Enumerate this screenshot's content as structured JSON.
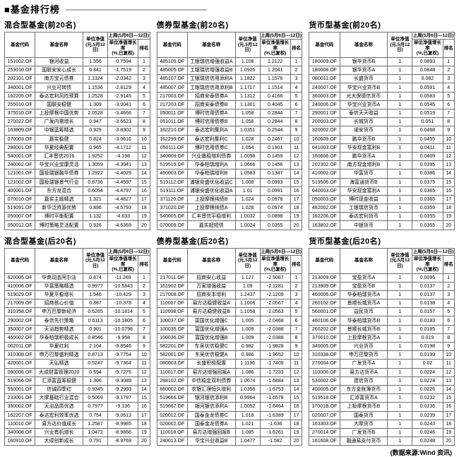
{
  "page": {
    "title": "■基金排行榜",
    "source": "(数据来源:Wind 资讯)"
  },
  "columns": {
    "code": "基金代码",
    "name": "基金名称",
    "nav": "单位净值\n(元,5月12日)",
    "week": "上周(5月6日—12日)",
    "growth": "单位净值增长率\n(%,已复权)",
    "rank": "排名"
  },
  "tables": [
    {
      "title": "混合型基金(前20名)",
      "rows": [
        [
          "151002.OF",
          "银河收益",
          "1.556",
          "-0.7594",
          "1"
        ],
        [
          "253010.OF",
          "国联安安心成长",
          "0.841",
          "-1.7519",
          "2"
        ],
        [
          "202101.OF",
          "南方宝元债券",
          "1.1324",
          "-2.0342",
          "3"
        ],
        [
          "340001.OF",
          "兴业可转债",
          "1.1536",
          "-2.8129",
          "4"
        ],
        [
          "162205.OF",
          "泰达宏利风险预算",
          "1.2528",
          "-2.9145",
          "5"
        ],
        [
          "255010.OF",
          "国联安稳健",
          "1.309",
          "-3.0041",
          "6"
        ],
        [
          "375010.OF",
          "上投摩根中国优势",
          "2.0528",
          "-3.4666",
          "7"
        ],
        [
          "270022.OF",
          "广发内需增长",
          "0.947",
          "-3.6623",
          "8"
        ],
        [
          "163809.OF",
          "中银蓝筹精选",
          "0.929",
          "-3.8302",
          "9"
        ],
        [
          "070003.OF",
          "嘉实稳健",
          "0.824",
          "-3.9616",
          "10"
        ],
        [
          "288001.OF",
          "华夏经典配置",
          "0.965",
          "-4.1712",
          "11"
        ],
        [
          "540001.OF",
          "汇丰晋信2016",
          "1.9252",
          "-4.198",
          "12"
        ],
        [
          "240002.OF",
          "华宝兴业宝康灵活",
          "1.3059",
          "-4.3941",
          "13"
        ],
        [
          "121001.OF",
          "国投瑞银融华债券",
          "1.2922",
          "-4.4029",
          "14"
        ],
        [
          "121002.OF",
          "国投瑞银景气行业",
          "0.8736",
          "-4.4597",
          "15"
        ],
        [
          "400001.OF",
          "东方龙混合",
          "0.6054",
          "-4.4797",
          "16"
        ],
        [
          "070010.OF",
          "嘉实主题精选",
          "1.321",
          "-4.4827",
          "17"
        ],
        [
          "519091.OF",
          "新华泛资源优势",
          "0.896",
          "-4.5793",
          "18"
        ],
        [
          "050007.OF",
          "博时平衡配置",
          "1.132",
          "-4.633",
          "19"
        ],
        [
          "050012.OF",
          "博时策略灵活配置",
          "0.926",
          "-4.6369",
          "20"
        ]
      ]
    },
    {
      "title": "债券型基金(前20名)",
      "rows": [
        [
          "485105.OF",
          "工银瑞信增强收益A",
          "1.108",
          "1.2122",
          "1"
        ],
        [
          "485005.OF",
          "工银瑞信增强收益B",
          "1.0926",
          "1.2041",
          "2"
        ],
        [
          "485107.OF",
          "工银瑞信信用添利A",
          "1.1822",
          "1.1576",
          "3"
        ],
        [
          "485007.OF",
          "工银瑞信信用添利B",
          "1.1717",
          "1.1514",
          "4"
        ],
        [
          "217003.OF",
          "招商安泰债券A",
          "1.1312",
          "0.4166",
          "5"
        ],
        [
          "217203.OF",
          "招商安泰债券B",
          "1.1301",
          "0.4045",
          "6"
        ],
        [
          "050011.OF",
          "博时信用债券A",
          "1.058",
          "0.2844",
          "7"
        ],
        [
          "051011.OF",
          "博时信用债券B",
          "1.058",
          "0.2844",
          "8"
        ],
        [
          "162210.OF",
          "泰达宏利集利A",
          "1.0351",
          "0.2544",
          "9"
        ],
        [
          "162299.OF",
          "泰达宏利集利C",
          "1.028",
          "0.2467",
          "10"
        ],
        [
          "050111.OF",
          "博时信用债券C",
          "1.054",
          "0.1901",
          "11"
        ],
        [
          "340009.OF",
          "兴业磐稳增利债券",
          "1.0098",
          "0.1459",
          "12"
        ],
        [
          "519519.OF",
          "华泰柏瑞增利A",
          "1.0666",
          "0.1456",
          "13"
        ],
        [
          "460003.OF",
          "华泰柏瑞增利B",
          "1.0583",
          "0.1347",
          "14"
        ],
        [
          "519112.OF",
          "浦银安盛优化收益C",
          "1.008",
          "0.0993",
          "15"
        ],
        [
          "519111.OF",
          "浦银安盛优化收益A",
          "1.01",
          "0.0991",
          "16"
        ],
        [
          "371120.OF",
          "上投摩根纯债B",
          "1.024",
          "0.0978",
          "17"
        ],
        [
          "371020.OF",
          "上投摩根纯债A",
          "1.028",
          "0.0974",
          "18"
        ],
        [
          "540005.OF",
          "汇丰晋信平稳增利",
          "1.0032",
          "0.0898",
          "19"
        ],
        [
          "070009.OF",
          "嘉实超短债",
          "1.0024",
          "0.0355",
          "20"
        ]
      ]
    },
    {
      "title": "货币型基金(前20名)",
      "rows": [
        [
          "180009.OF",
          "银华货币B",
          "1",
          "0.0893",
          "1"
        ],
        [
          "180008.OF",
          "银华货币A",
          "1",
          "0.0848",
          "2"
        ],
        [
          "080011.OF",
          "长盛货币",
          "1",
          "0.082",
          "3"
        ],
        [
          "240007.OF",
          "华宝兴业货币B",
          "1",
          "0.0591",
          "4"
        ],
        [
          "360003.OF",
          "光大保德信货币",
          "1",
          "0.0583",
          "5"
        ],
        [
          "240006.OF",
          "华宝兴业货币A",
          "1",
          "0.0545",
          "6"
        ],
        [
          "290001.OF",
          "泰信天天收益",
          "1",
          "0.0519",
          "7"
        ],
        [
          "200003.OF",
          "长城货币",
          "1",
          "0.051",
          "8"
        ],
        [
          "320002.OF",
          "诺安货币",
          "1",
          "0.0468",
          "9"
        ],
        [
          "160609.OF",
          "鹏华货币B",
          "1",
          "0.0455",
          "10"
        ],
        [
          "041003.OF",
          "华安现金富利B",
          "1",
          "0.0411",
          "11"
        ],
        [
          "160606.OF",
          "鹏华货币A",
          "1",
          "0.0409",
          "12"
        ],
        [
          "202302.OF",
          "南方现金增利B",
          "1",
          "0.0395",
          "13"
        ],
        [
          "410002.OF",
          "华富货币",
          "1",
          "0.0386",
          "14"
        ],
        [
          "519506.OF",
          "海富通货币B",
          "1",
          "0.0375",
          "15"
        ],
        [
          "040003.OF",
          "华安现金富利A",
          "1",
          "0.0365",
          "16"
        ],
        [
          "050003.OF",
          "博时现金收益",
          "1",
          "0.0365",
          "17"
        ],
        [
          "482002.OF",
          "工银瑞信货币",
          "1",
          "0.0359",
          "18"
        ],
        [
          "162206.OF",
          "泰达宏利货币",
          "1",
          "0.0355",
          "19"
        ],
        [
          "163802.OF",
          "中银货币",
          "1",
          "0.0355",
          "20"
        ]
      ]
    },
    {
      "title": "混合型基金(后20名)",
      "rows": [
        [
          "620005.OF",
          "华商动态阿尔法",
          "0.874",
          "-11.269",
          "1"
        ],
        [
          "410006.OF",
          "华富策略精选",
          "0.9977",
          "-10.5843",
          "2"
        ],
        [
          "519029.OF",
          "华夏平稳增长",
          "1.546",
          "-10.429",
          "3"
        ],
        [
          "217009.OF",
          "招商核心价值",
          "0.887",
          "-10.378",
          "4"
        ],
        [
          "310358.OF",
          "申万巴黎新经济",
          "0.6265",
          "-10.1814",
          "5"
        ],
        [
          "290002.OF",
          "泰信先行策略",
          "0.6113",
          "-10.1805",
          "6"
        ],
        [
          "350007.OF",
          "天治趋势精选",
          "0.901",
          "-10.0798",
          "7"
        ],
        [
          "460002.OF",
          "华泰柏瑞积极成长",
          "0.8546",
          "-9.958",
          "8"
        ],
        [
          "002011.OF",
          "华夏红利",
          "2.104",
          "-9.8546",
          "9"
        ],
        [
          "310308.OF",
          "申万巴黎盛利精选",
          "0.8713",
          "-9.7754",
          "10"
        ],
        [
          "420001.OF",
          "天弘精选",
          "0.5247",
          "-9.7364",
          "11"
        ],
        [
          "090006.OF",
          "大成财富管理2020",
          "0.594",
          "-9.7276",
          "12"
        ],
        [
          "519066.OF",
          "汇添富蓝筹稳健",
          "1.306",
          "-9.3089",
          "13"
        ],
        [
          "550001.OF",
          "信诚四季红",
          "0.9345",
          "-9.2993",
          "14"
        ],
        [
          "233001.OF",
          "大摩基础行业混合",
          "0.5069",
          "-9.1797",
          "15"
        ],
        [
          "350002.OF",
          "天治品质优选",
          "0.7977",
          "-9.136",
          "16"
        ],
        [
          "162207.OF",
          "泰达宏利效率优选",
          "0.754",
          "-9.0613",
          "17"
        ],
        [
          "110010.OF",
          "易方达价值成长",
          "1.2587",
          "-8.9985",
          "18"
        ],
        [
          "340008.OF",
          "兴业有机增长",
          "1.0472",
          "-8.9866",
          "19"
        ],
        [
          "160910.OF",
          "大成创新成长",
          "0.791",
          "-8.9769",
          "20"
        ]
      ]
    },
    {
      "title": "债券型基金(后20名)",
      "rows": [
        [
          "217011.OF",
          "招商安心收益",
          "1.127",
          "-2.5087",
          "1"
        ],
        [
          "161902.OF",
          "万家增强收益",
          "1.09",
          "-2.1281",
          "2"
        ],
        [
          "217008.OF",
          "招商安本增利",
          "1.2437",
          "-2.1209",
          "3"
        ],
        [
          "110007.OF",
          "易方达稳健收益A",
          "1.1006",
          "-2.0567",
          "4"
        ],
        [
          "110008.OF",
          "易方达稳健收益B",
          "1.1058",
          "-2.0563",
          "5"
        ],
        [
          "100037.OF",
          "富国优化增强C",
          "1.005",
          "-2.0468",
          "6"
        ],
        [
          "100035.OF",
          "富国优化增强A",
          "1.009",
          "-2.0388",
          "7"
        ],
        [
          "100036.OF",
          "富国优化增强B",
          "1.009",
          "-2.0388",
          "8"
        ],
        [
          "582201.OF",
          "东吴优信稳健C",
          "0.982",
          "-1.9828",
          "9"
        ],
        [
          "582001.OF",
          "东吴优信稳健A",
          "0.986",
          "-1.9652",
          "10"
        ],
        [
          "080003.OF",
          "长盛积极配置",
          "1.1196",
          "-1.7409",
          "11"
        ],
        [
          "110017.OF",
          "易方达增强回报A",
          "1.086",
          "-1.7233",
          "12"
        ],
        [
          "288102.OF",
          "中信稳定双利债券",
          "1.0674",
          "-1.6884",
          "13"
        ],
        [
          "660002.OF",
          "农银汇理恒久增利",
          "1.0358",
          "-1.6753",
          "14"
        ],
        [
          "519666.OF",
          "银河银信添利B",
          "0.9964",
          "-1.6578",
          "15"
        ],
        [
          "519667.OF",
          "银河银信添利A",
          "1.0052",
          "-1.6464",
          "16"
        ],
        [
          "020012.OF",
          "国泰金龙债券C",
          "1.018",
          "-1.6389",
          "17"
        ],
        [
          "020002.OF",
          "国泰金龙债券A",
          "1.021",
          "-1.636",
          "18"
        ],
        [
          "110018.OF",
          "易方达增强回报B",
          "1.085",
          "-1.6261",
          "19"
        ],
        [
          "240013.OF",
          "华宝兴业收益B",
          "1.0477",
          "-1.582",
          "20"
        ]
      ]
    },
    {
      "title": "货币型基金(后20名)",
      "rows": [
        [
          "213009.OF",
          "宝盈货币A",
          "1",
          "0.0095",
          "1"
        ],
        [
          "213909.OF",
          "宝盈货币B",
          "1",
          "0.0137",
          "2"
        ],
        [
          "460006.OF",
          "华泰柏瑞货币A",
          "1",
          "0.0137",
          "3"
        ],
        [
          "260102.OF",
          "景顺长城货币A",
          "1",
          "0.0138",
          "4"
        ],
        [
          "560001.OF",
          "益民货币",
          "1",
          "0.0157",
          "5"
        ],
        [
          "460106.OF",
          "华泰柏瑞货币B",
          "1",
          "0.0183",
          "6"
        ],
        [
          "260202.OF",
          "景顺长城货币B",
          "1",
          "0.0185",
          "7"
        ],
        [
          "370010.OF",
          "上投摩根货币A",
          "1",
          "0.019",
          "8"
        ],
        [
          "340005.OF",
          "兴业货币",
          "1",
          "0.0198",
          "9"
        ],
        [
          "310338.OF",
          "申万巴黎货币",
          "1",
          "0.0199",
          "10"
        ],
        [
          "270004.OF",
          "广发货币A",
          "1",
          "0.02",
          "11"
        ],
        [
          "110006.OF",
          "易方达货币A",
          "1",
          "0.0224",
          "12"
        ],
        [
          "530002.OF",
          "建信货币",
          "1",
          "0.0224",
          "13"
        ],
        [
          "400005.OF",
          "东方金账簿货币",
          "1",
          "0.0226",
          "14"
        ],
        [
          "519518.OF",
          "汇添富货币A",
          "1",
          "0.0232",
          "15"
        ],
        [
          "37001B.OF",
          "上投摩根货币B",
          "1",
          "0.0236",
          "16"
        ],
        [
          "020007.OF",
          "国泰货币",
          "1",
          "0.0239",
          "17"
        ],
        [
          "163303.OF",
          "大摩货币",
          "1",
          "0.0243",
          "18"
        ],
        [
          "270014.OF",
          "广发货币B",
          "1",
          "0.0246",
          "19"
        ],
        [
          "161608.OF",
          "融通易支付货币",
          "1",
          "0.0248",
          "20"
        ]
      ]
    }
  ]
}
